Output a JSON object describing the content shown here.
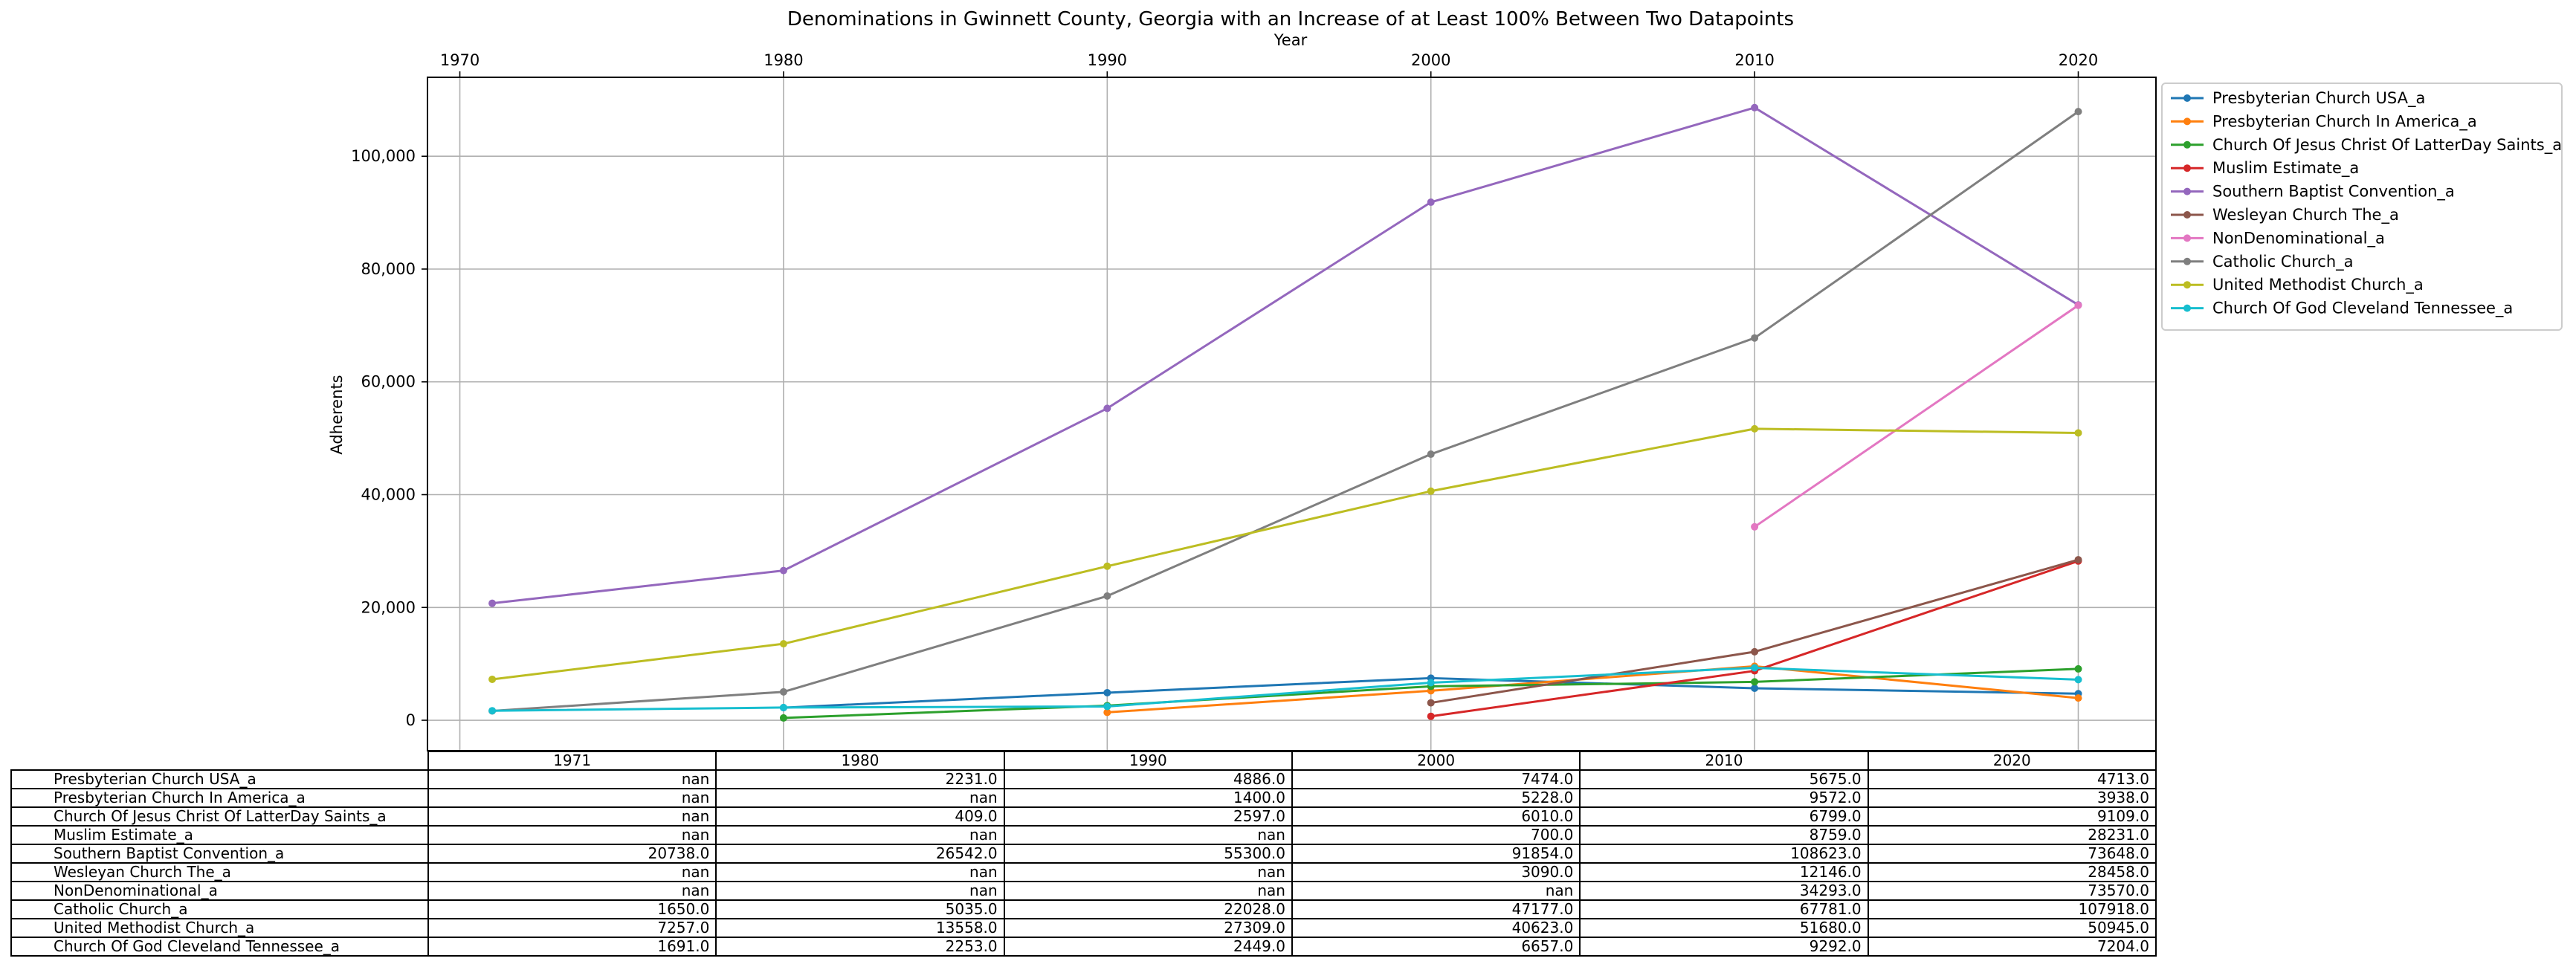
{
  "chart_data": {
    "type": "line",
    "title": "Denominations in Gwinnett County, Georgia with an Increase of at Least 100% Between Two Datapoints",
    "xlabel": "Year",
    "ylabel": "Adherents",
    "x_ticks": [
      "1970",
      "1980",
      "1990",
      "2000",
      "2010",
      "2020"
    ],
    "y_ticks": [
      "0",
      "20,000",
      "40,000",
      "60,000",
      "80,000",
      "100,000"
    ],
    "xlim": [
      1969,
      2022.4
    ],
    "ylim": [
      -5400,
      114000
    ],
    "grid": true,
    "legend_position": "upper-right, outside plot",
    "x": [
      1971,
      1980,
      1990,
      2000,
      2010,
      2020
    ],
    "series": [
      {
        "name": "Presbyterian Church USA_a",
        "color": "#1f77b4",
        "values": [
          null,
          2231.0,
          4886.0,
          7474.0,
          5675.0,
          4713.0
        ]
      },
      {
        "name": "Presbyterian Church In America_a",
        "color": "#ff7f0e",
        "values": [
          null,
          null,
          1400.0,
          5228.0,
          9572.0,
          3938.0
        ]
      },
      {
        "name": "Church Of Jesus Christ Of LatterDay Saints_a",
        "color": "#2ca02c",
        "values": [
          null,
          409.0,
          2597.0,
          6010.0,
          6799.0,
          9109.0
        ]
      },
      {
        "name": "Muslim Estimate_a",
        "color": "#d62728",
        "values": [
          null,
          null,
          null,
          700.0,
          8759.0,
          28231.0
        ]
      },
      {
        "name": "Southern Baptist Convention_a",
        "color": "#9467bd",
        "values": [
          20738.0,
          26542.0,
          55300.0,
          91854.0,
          108623.0,
          73648.0
        ]
      },
      {
        "name": "Wesleyan Church The_a",
        "color": "#8c564b",
        "values": [
          null,
          null,
          null,
          3090.0,
          12146.0,
          28458.0
        ]
      },
      {
        "name": "NonDenominational_a",
        "color": "#e377c2",
        "values": [
          null,
          null,
          null,
          null,
          34293.0,
          73570.0
        ]
      },
      {
        "name": "Catholic Church_a",
        "color": "#7f7f7f",
        "values": [
          1650.0,
          5035.0,
          22028.0,
          47177.0,
          67781.0,
          107918.0
        ]
      },
      {
        "name": "United Methodist Church_a",
        "color": "#bcbd22",
        "values": [
          7257.0,
          13558.0,
          27309.0,
          40623.0,
          51680.0,
          50945.0
        ]
      },
      {
        "name": "Church Of God Cleveland Tennessee_a",
        "color": "#17becf",
        "values": [
          1691.0,
          2253.0,
          2449.0,
          6657.0,
          9292.0,
          7204.0
        ]
      }
    ],
    "table": {
      "columns": [
        "1971",
        "1980",
        "1990",
        "2000",
        "2010",
        "2020"
      ],
      "rows": [
        {
          "label": "Presbyterian Church USA_a",
          "cells": [
            "nan",
            "2231.0",
            "4886.0",
            "7474.0",
            "5675.0",
            "4713.0"
          ]
        },
        {
          "label": "Presbyterian Church In America_a",
          "cells": [
            "nan",
            "nan",
            "1400.0",
            "5228.0",
            "9572.0",
            "3938.0"
          ]
        },
        {
          "label": "Church Of Jesus Christ Of LatterDay Saints_a",
          "cells": [
            "nan",
            "409.0",
            "2597.0",
            "6010.0",
            "6799.0",
            "9109.0"
          ]
        },
        {
          "label": "Muslim Estimate_a",
          "cells": [
            "nan",
            "nan",
            "nan",
            "700.0",
            "8759.0",
            "28231.0"
          ]
        },
        {
          "label": "Southern Baptist Convention_a",
          "cells": [
            "20738.0",
            "26542.0",
            "55300.0",
            "91854.0",
            "108623.0",
            "73648.0"
          ]
        },
        {
          "label": "Wesleyan Church The_a",
          "cells": [
            "nan",
            "nan",
            "nan",
            "3090.0",
            "12146.0",
            "28458.0"
          ]
        },
        {
          "label": "NonDenominational_a",
          "cells": [
            "nan",
            "nan",
            "nan",
            "nan",
            "34293.0",
            "73570.0"
          ]
        },
        {
          "label": "Catholic Church_a",
          "cells": [
            "1650.0",
            "5035.0",
            "22028.0",
            "47177.0",
            "67781.0",
            "107918.0"
          ]
        },
        {
          "label": "United Methodist Church_a",
          "cells": [
            "7257.0",
            "13558.0",
            "27309.0",
            "40623.0",
            "51680.0",
            "50945.0"
          ]
        },
        {
          "label": "Church Of God Cleveland Tennessee_a",
          "cells": [
            "1691.0",
            "2253.0",
            "2449.0",
            "6657.0",
            "9292.0",
            "7204.0"
          ]
        }
      ]
    }
  }
}
